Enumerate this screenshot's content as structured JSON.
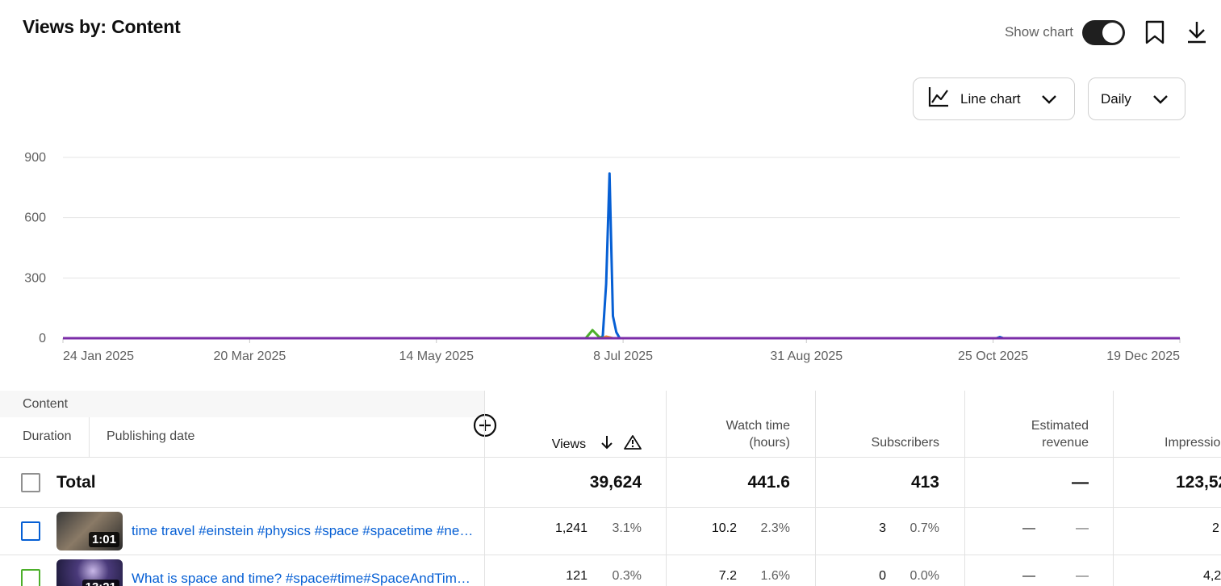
{
  "page": {
    "title": "Views by: Content"
  },
  "top_controls": {
    "show_chart_label": "Show chart",
    "show_chart_on": true,
    "icons": [
      "bookmark-icon",
      "download-icon"
    ]
  },
  "dropdowns": {
    "chart_type": {
      "label": "Line chart",
      "icon": "line-chart-icon"
    },
    "period": {
      "label": "Daily"
    }
  },
  "chart_data": {
    "type": "line",
    "title": "",
    "xlabel": "",
    "ylabel": "",
    "ylim": [
      0,
      900
    ],
    "yticks": [
      "900",
      "600",
      "300",
      "0"
    ],
    "xticks": [
      "24 Jan 2025",
      "20 Mar 2025",
      "14 May 2025",
      "8 Jul 2025",
      "31 Aug 2025",
      "25 Oct 2025",
      "19 Dec 2025"
    ],
    "x_range": [
      "24 Jan 2025",
      "19 Dec 2025"
    ],
    "grid": "horizontal",
    "series": [
      {
        "color": "#065fd4",
        "points": [
          [
            "24 Jan 2025",
            0
          ],
          [
            "1 Jul 2025",
            0
          ],
          [
            "2 Jul 2025",
            10
          ],
          [
            "3 Jul 2025",
            270
          ],
          [
            "4 Jul 2025",
            820
          ],
          [
            "5 Jul 2025",
            110
          ],
          [
            "6 Jul 2025",
            30
          ],
          [
            "7 Jul 2025",
            0
          ],
          [
            "26 Oct 2025",
            0
          ],
          [
            "27 Oct 2025",
            6
          ],
          [
            "28 Oct 2025",
            0
          ],
          [
            "19 Dec 2025",
            0
          ]
        ]
      },
      {
        "color": "#4caf2a",
        "points": [
          [
            "24 Jan 2025",
            0
          ],
          [
            "27 Jun 2025",
            0
          ],
          [
            "29 Jun 2025",
            40
          ],
          [
            "1 Jul 2025",
            5
          ],
          [
            "3 Jul 2025",
            0
          ],
          [
            "19 Dec 2025",
            0
          ]
        ]
      },
      {
        "color": "#f08a24",
        "points": [
          [
            "24 Jan 2025",
            0
          ],
          [
            "2 Jul 2025",
            0
          ],
          [
            "3 Jul 2025",
            8
          ],
          [
            "5 Jul 2025",
            0
          ],
          [
            "19 Dec 2025",
            0
          ]
        ]
      },
      {
        "color": "#7b2ca8",
        "points": [
          [
            "24 Jan 2025",
            0
          ],
          [
            "19 Dec 2025",
            0
          ]
        ]
      }
    ]
  },
  "table": {
    "dimension_header": "Content",
    "sub_headers": [
      "Duration",
      "Publishing date"
    ],
    "metric_headers": [
      {
        "label": "Views",
        "sorted": true,
        "warning": true
      },
      {
        "label": "Watch time (hours)"
      },
      {
        "label": "Subscribers"
      },
      {
        "label": "Estimated revenue"
      },
      {
        "label": "Impressions"
      }
    ],
    "total": {
      "label": "Total",
      "views": "39,624",
      "watch_time": "441.6",
      "subscribers": "413",
      "revenue": "—",
      "impressions": "123,52"
    },
    "rows": [
      {
        "checkbox_color": "#065fd4",
        "duration": "1:01",
        "title": "time travel #einstein #physics #space #spacetime #newton #science #shorts",
        "views": "1,241",
        "views_pct": "3.1%",
        "watch_time": "10.2",
        "watch_pct": "2.3%",
        "subscribers": "3",
        "subs_pct": "0.7%",
        "revenue": "—",
        "revenue_pct": "—",
        "impressions": "2"
      },
      {
        "checkbox_color": "#4caf2a",
        "duration": "13:21",
        "title": "What is space and time? #space#time#SpaceAndTime#physics",
        "views": "121",
        "views_pct": "0.3%",
        "watch_time": "7.2",
        "watch_pct": "1.6%",
        "subscribers": "0",
        "subs_pct": "0.0%",
        "revenue": "—",
        "revenue_pct": "—",
        "impressions": "4,2"
      }
    ]
  }
}
